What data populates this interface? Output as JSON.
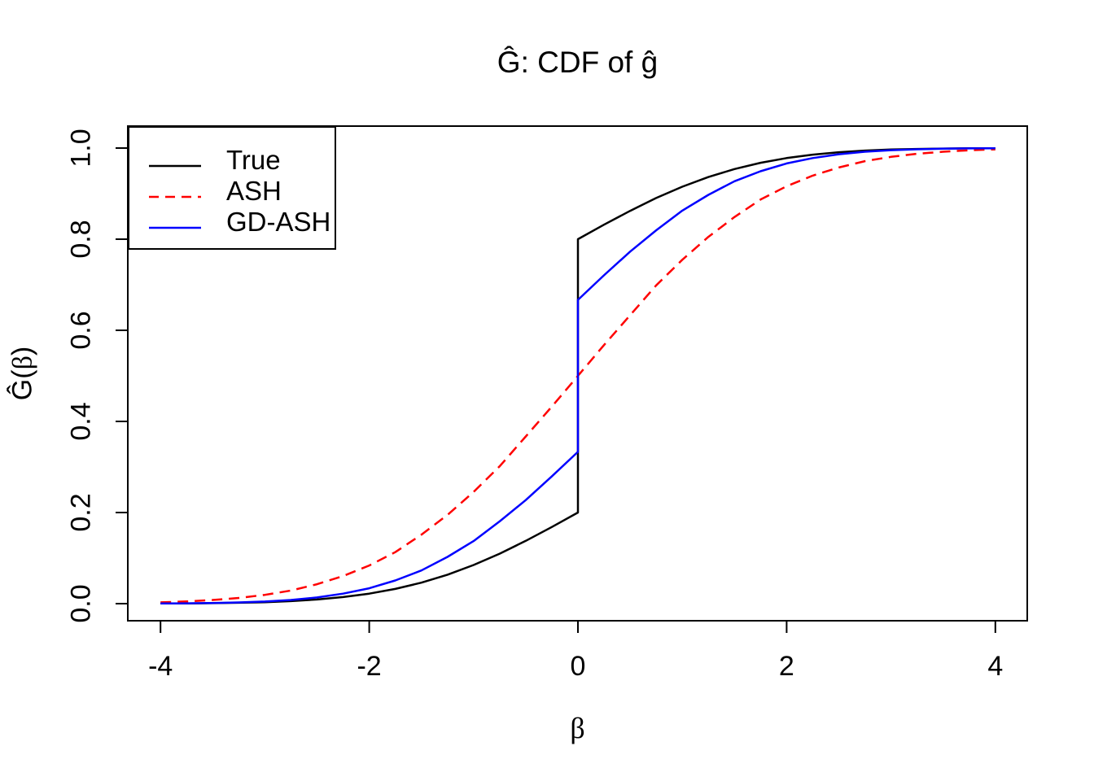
{
  "chart_data": {
    "type": "line",
    "title": "Ĝ: CDF of ĝ",
    "xlabel": "β",
    "ylabel": "Ĝ(β)",
    "ylabel_parts": [
      "Ĝ(",
      "β",
      ")"
    ],
    "xlim": [
      -4,
      4
    ],
    "ylim": [
      0,
      1
    ],
    "x_ticks": [
      -4,
      -2,
      0,
      2,
      4
    ],
    "x_tick_labels": [
      "-4",
      "-2",
      "0",
      "2",
      "4"
    ],
    "y_ticks": [
      0,
      0.2,
      0.4,
      0.6,
      0.8,
      1
    ],
    "y_tick_labels": [
      "0.0",
      "0.2",
      "0.4",
      "0.6",
      "0.8",
      "1.0"
    ],
    "grid": false,
    "legend_position": "topleft",
    "legend_labels": [
      "True",
      "ASH",
      "GD-ASH"
    ],
    "colors": {
      "true": "#000000",
      "ash": "#FF0000",
      "gd_ash": "#0000FF"
    },
    "series": [
      {
        "name": "True",
        "color": "#000000",
        "line_style": "solid",
        "note": "step CDF: point mass 0.6 at 0, jump from 0.2 to 0.8",
        "points": [
          [
            -4,
            0.0003
          ],
          [
            -3.75,
            0.0005
          ],
          [
            -3.5,
            0.001
          ],
          [
            -3.25,
            0.0019
          ],
          [
            -3,
            0.0033
          ],
          [
            -2.75,
            0.0056
          ],
          [
            -2.5,
            0.0091
          ],
          [
            -2.25,
            0.0144
          ],
          [
            -2,
            0.0219
          ],
          [
            -1.75,
            0.0323
          ],
          [
            -1.5,
            0.046
          ],
          [
            -1.25,
            0.0635
          ],
          [
            -1,
            0.0848
          ],
          [
            -0.75,
            0.1097
          ],
          [
            -0.5,
            0.1378
          ],
          [
            -0.25,
            0.1683
          ],
          [
            0,
            0.2
          ],
          [
            0,
            0.8
          ],
          [
            0.25,
            0.8317
          ],
          [
            0.5,
            0.8622
          ],
          [
            0.75,
            0.8903
          ],
          [
            1,
            0.9152
          ],
          [
            1.25,
            0.9365
          ],
          [
            1.5,
            0.954
          ],
          [
            1.75,
            0.9677
          ],
          [
            2,
            0.9781
          ],
          [
            2.25,
            0.9856
          ],
          [
            2.5,
            0.9909
          ],
          [
            2.75,
            0.9944
          ],
          [
            3,
            0.9967
          ],
          [
            3.25,
            0.9981
          ],
          [
            3.5,
            0.999
          ],
          [
            3.75,
            0.9995
          ],
          [
            4,
            0.9997
          ]
        ]
      },
      {
        "name": "ASH",
        "color": "#FF0000",
        "line_style": "dashed",
        "note": "smooth CDF through 0.5 at 0, no point mass",
        "points": [
          [
            -4,
            0.0029
          ],
          [
            -3.75,
            0.0048
          ],
          [
            -3.5,
            0.008
          ],
          [
            -3.25,
            0.0125
          ],
          [
            -3,
            0.0192
          ],
          [
            -2.75,
            0.0287
          ],
          [
            -2.5,
            0.0427
          ],
          [
            -2.25,
            0.0606
          ],
          [
            -2,
            0.0838
          ],
          [
            -1.75,
            0.1131
          ],
          [
            -1.5,
            0.1515
          ],
          [
            -1.25,
            0.1949
          ],
          [
            -1,
            0.2451
          ],
          [
            -0.75,
            0.3015
          ],
          [
            -0.5,
            0.3669
          ],
          [
            -0.25,
            0.4325
          ],
          [
            0,
            0.5
          ],
          [
            0.25,
            0.5675
          ],
          [
            0.5,
            0.6331
          ],
          [
            0.75,
            0.6985
          ],
          [
            1,
            0.7549
          ],
          [
            1.25,
            0.8051
          ],
          [
            1.5,
            0.8485
          ],
          [
            1.75,
            0.8869
          ],
          [
            2,
            0.9162
          ],
          [
            2.25,
            0.9394
          ],
          [
            2.5,
            0.9573
          ],
          [
            2.75,
            0.9713
          ],
          [
            3,
            0.9808
          ],
          [
            3.25,
            0.9875
          ],
          [
            3.5,
            0.992
          ],
          [
            3.75,
            0.9952
          ],
          [
            4,
            0.9971
          ]
        ]
      },
      {
        "name": "GD-ASH",
        "color": "#0000FF",
        "line_style": "solid",
        "note": "step CDF: jump from 0.333 to 0.667 at 0",
        "points": [
          [
            -4,
            0.0003
          ],
          [
            -3.75,
            0.0007
          ],
          [
            -3.5,
            0.0014
          ],
          [
            -3.25,
            0.0026
          ],
          [
            -3,
            0.0046
          ],
          [
            -2.75,
            0.0081
          ],
          [
            -2.5,
            0.0135
          ],
          [
            -2.25,
            0.0219
          ],
          [
            -2,
            0.0337
          ],
          [
            -1.75,
            0.0509
          ],
          [
            -1.5,
            0.0729
          ],
          [
            -1.25,
            0.1026
          ],
          [
            -1,
            0.1374
          ],
          [
            -0.75,
            0.1806
          ],
          [
            -0.5,
            0.2273
          ],
          [
            -0.25,
            0.2792
          ],
          [
            0,
            0.3333
          ],
          [
            0,
            0.6667
          ],
          [
            0.25,
            0.7208
          ],
          [
            0.5,
            0.7727
          ],
          [
            0.75,
            0.8194
          ],
          [
            1,
            0.8626
          ],
          [
            1.25,
            0.8974
          ],
          [
            1.5,
            0.9271
          ],
          [
            1.75,
            0.9491
          ],
          [
            2,
            0.9663
          ],
          [
            2.25,
            0.9781
          ],
          [
            2.5,
            0.9865
          ],
          [
            2.75,
            0.9919
          ],
          [
            3,
            0.9954
          ],
          [
            3.25,
            0.9974
          ],
          [
            3.5,
            0.9986
          ],
          [
            3.75,
            0.9993
          ],
          [
            4,
            0.9997
          ]
        ]
      }
    ]
  }
}
